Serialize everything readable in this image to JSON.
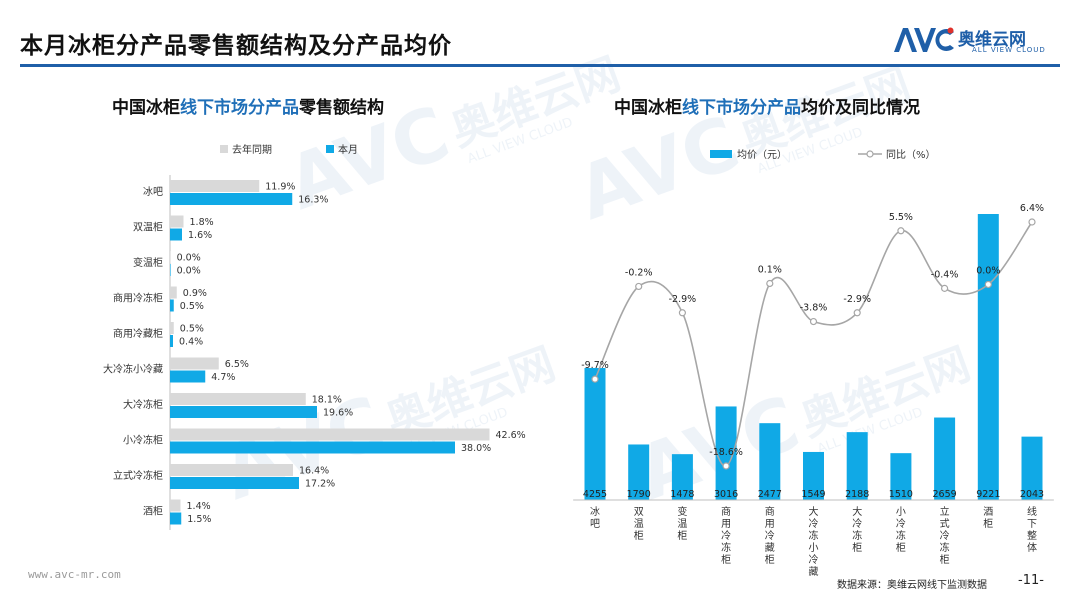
{
  "page": {
    "title": "本月冰柜分产品零售额结构及分产品均价",
    "footer_url": "www.avc-mr.com",
    "footer_source": "数据来源：奥维云网线下监测数据",
    "page_number": "-11-"
  },
  "logo": {
    "mark": "AVC",
    "cn": "奥维云网",
    "en": "ALL VIEW CLOUD"
  },
  "watermark": {
    "cn": "奥维云网",
    "en": "ALL VIEW CLOUD"
  },
  "colors": {
    "accent": "#1f5fa8",
    "current": "#10a9e6",
    "last_year": "#d9d9d9",
    "line": "#a6a6a6"
  },
  "left_title": {
    "prefix": "中国冰柜",
    "highlight": "线下市场分产品",
    "suffix": "零售额结构"
  },
  "right_title": {
    "prefix": "中国冰柜",
    "highlight": "线下市场分产品",
    "suffix": "均价及同比情况"
  },
  "chart_data": [
    {
      "type": "bar",
      "orientation": "horizontal",
      "categories": [
        "冰吧",
        "双温柜",
        "变温柜",
        "商用冷冻柜",
        "商用冷藏柜",
        "大冷冻小冷藏",
        "大冷冻柜",
        "小冷冻柜",
        "立式冷冻柜",
        "酒柜"
      ],
      "series": [
        {
          "name": "去年同期",
          "values": [
            11.9,
            1.8,
            0.0,
            0.9,
            0.5,
            6.5,
            18.1,
            42.6,
            16.4,
            1.4
          ],
          "labels": [
            "11.9%",
            "1.8%",
            "0.0%",
            "0.9%",
            "0.5%",
            "6.5%",
            "18.1%",
            "42.6%",
            "16.4%",
            "1.4%"
          ]
        },
        {
          "name": "本月",
          "values": [
            16.3,
            1.6,
            0.0,
            0.5,
            0.4,
            4.7,
            19.6,
            38.0,
            17.2,
            1.5
          ],
          "labels": [
            "16.3%",
            "1.6%",
            "0.0%",
            "0.5%",
            "0.4%",
            "4.7%",
            "19.6%",
            "38.0%",
            "17.2%",
            "1.5%"
          ]
        }
      ],
      "unit": "%",
      "legend": "top"
    },
    {
      "type": "bar+line",
      "categories": [
        "冰吧",
        "双温柜",
        "变温柜",
        "商用冷冻柜",
        "商用冷藏柜",
        "大冷冻小冷藏",
        "大冷冻柜",
        "小冷冻柜",
        "立式冷冻柜",
        "酒柜",
        "线下整体"
      ],
      "series": [
        {
          "name": "均价（元）",
          "type": "bar",
          "values": [
            4255,
            1790,
            1478,
            3016,
            2477,
            1549,
            2188,
            1510,
            2659,
            9221,
            2043
          ],
          "labels": [
            "4255",
            "1790",
            "1478",
            "3016",
            "2477",
            "1549",
            "2188",
            "1510",
            "2659",
            "9221",
            "2043"
          ]
        },
        {
          "name": "同比（%）",
          "type": "line",
          "values": [
            -9.7,
            -0.2,
            -2.9,
            -18.6,
            0.1,
            -3.8,
            -2.9,
            5.5,
            -0.4,
            0.0,
            6.4
          ],
          "labels": [
            "-9.7%",
            "-0.2%",
            "-2.9%",
            "-18.6%",
            "0.1%",
            "-3.8%",
            "-2.9%",
            "5.5%",
            "-0.4%",
            "0.0%",
            "6.4%"
          ]
        }
      ],
      "legend": "top",
      "grid": false
    }
  ]
}
